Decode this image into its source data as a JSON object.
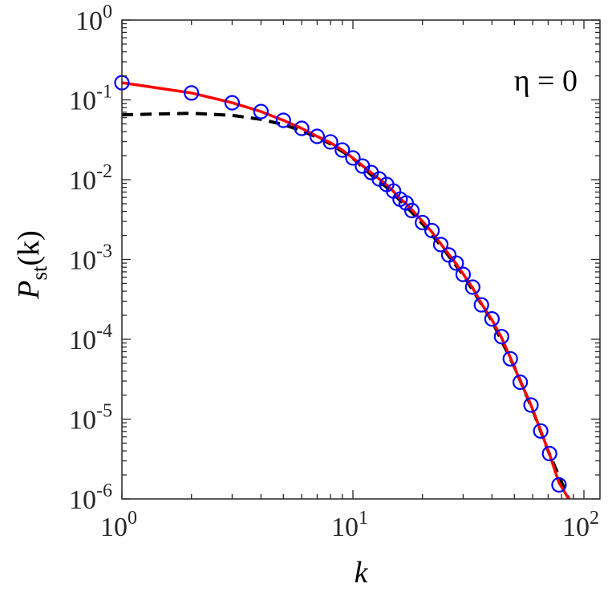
{
  "chart_data": {
    "type": "line",
    "title": "",
    "xlabel": "k",
    "ylabel": {
      "main": "P",
      "sub": "st",
      "arg": "(k)"
    },
    "annotation": "η = 0",
    "xscale": "log",
    "yscale": "log",
    "xlim": [
      1,
      117
    ],
    "ylim": [
      1e-06,
      1
    ],
    "grid": false,
    "x_ticks": [
      {
        "base": "10",
        "exp": "0",
        "value": 1
      },
      {
        "base": "10",
        "exp": "1",
        "value": 10
      },
      {
        "base": "10",
        "exp": "2",
        "value": 100
      }
    ],
    "y_ticks": [
      {
        "base": "10",
        "exp": "0",
        "value": 1
      },
      {
        "base": "10",
        "exp": "-1",
        "value": 0.1
      },
      {
        "base": "10",
        "exp": "-2",
        "value": 0.01
      },
      {
        "base": "10",
        "exp": "-3",
        "value": 0.001
      },
      {
        "base": "10",
        "exp": "-4",
        "value": 0.0001
      },
      {
        "base": "10",
        "exp": "-5",
        "value": 1e-05
      },
      {
        "base": "10",
        "exp": "-6",
        "value": 1e-06
      }
    ],
    "series": [
      {
        "style": "markers",
        "marker": "circle",
        "color": "#0000ff",
        "x": [
          1,
          2,
          3,
          4,
          5,
          6,
          7,
          8,
          9,
          10,
          11,
          12,
          13,
          14,
          15,
          16,
          17,
          18,
          20,
          22,
          24,
          26,
          28,
          30,
          33,
          36,
          40,
          44,
          48,
          53,
          59,
          65,
          71,
          78
        ],
        "y": [
          0.164,
          0.122,
          0.092,
          0.0714,
          0.0554,
          0.044,
          0.0349,
          0.0297,
          0.0235,
          0.0187,
          0.0148,
          0.0123,
          0.0102,
          0.0087,
          0.0072,
          0.0057,
          0.0051,
          0.0041,
          0.0029,
          0.0023,
          0.00154,
          0.00114,
          0.0009,
          0.00065,
          0.00045,
          0.00027,
          0.00018,
          0.000108,
          5.7e-05,
          2.9e-05,
          1.5e-05,
          7.1e-06,
          3.7e-06,
          1.5e-06
        ]
      },
      {
        "style": "solid",
        "color": "#ff0000",
        "x": [
          1,
          2,
          3,
          4,
          5,
          6,
          7,
          8,
          9,
          10,
          11,
          12,
          13,
          14,
          15,
          16,
          17,
          18,
          20,
          22,
          24,
          26,
          28,
          30,
          33,
          36,
          40,
          44,
          48,
          53,
          59,
          65,
          71,
          78,
          86
        ],
        "y": [
          0.164,
          0.122,
          0.092,
          0.0714,
          0.0554,
          0.044,
          0.0349,
          0.029,
          0.0235,
          0.0187,
          0.015,
          0.0122,
          0.0102,
          0.0086,
          0.0071,
          0.0058,
          0.005,
          0.0042,
          0.003,
          0.0022,
          0.00157,
          0.00116,
          0.00088,
          0.00066,
          0.00044,
          0.00028,
          0.000175,
          0.000105,
          5.9e-05,
          3e-05,
          1.5e-05,
          7.2e-06,
          3.6e-06,
          1.6e-06,
          1e-06
        ]
      },
      {
        "style": "dashed",
        "color": "#000000",
        "x": [
          1,
          2,
          3,
          4,
          5,
          6,
          7,
          8,
          10,
          12,
          14,
          16,
          18,
          20,
          24,
          30,
          40,
          50,
          60,
          70,
          86
        ],
        "y": [
          0.065,
          0.068,
          0.064,
          0.057,
          0.049,
          0.041,
          0.034,
          0.028,
          0.0185,
          0.0115,
          0.008,
          0.0055,
          0.0039,
          0.0028,
          0.0015,
          0.00064,
          0.00017,
          4.5e-05,
          1.3e-05,
          4e-06,
          1e-06
        ]
      }
    ]
  }
}
